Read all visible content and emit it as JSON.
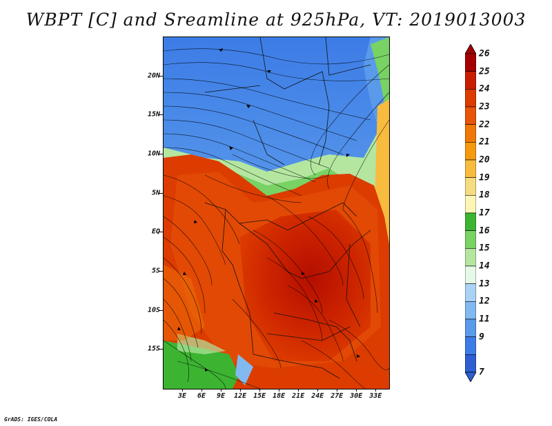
{
  "title": "WBPT [C] and Sreamline at 925hPa, VT: 2019013003",
  "credit": "GrADS: IGES/COLA",
  "map": {
    "variable": "Wet-bulb potential temperature",
    "units": "C",
    "level": "925hPa",
    "valid_time": "2019013003",
    "lon_range": [
      0,
      35
    ],
    "lat_range": [
      -20,
      25
    ],
    "y_labels": [
      {
        "text": "20N",
        "lat": 20
      },
      {
        "text": "15N",
        "lat": 15
      },
      {
        "text": "10N",
        "lat": 10
      },
      {
        "text": "5N",
        "lat": 5
      },
      {
        "text": "EQ",
        "lat": 0
      },
      {
        "text": "5S",
        "lat": -5
      },
      {
        "text": "10S",
        "lat": -10
      },
      {
        "text": "15S",
        "lat": -15
      }
    ],
    "x_labels": [
      {
        "text": "3E",
        "lon": 3
      },
      {
        "text": "6E",
        "lon": 6
      },
      {
        "text": "9E",
        "lon": 9
      },
      {
        "text": "12E",
        "lon": 12
      },
      {
        "text": "15E",
        "lon": 15
      },
      {
        "text": "18E",
        "lon": 18
      },
      {
        "text": "21E",
        "lon": 21
      },
      {
        "text": "24E",
        "lon": 24
      },
      {
        "text": "27E",
        "lon": 27
      },
      {
        "text": "30E",
        "lon": 30
      },
      {
        "text": "33E",
        "lon": 33
      }
    ]
  },
  "colorbar": {
    "labels": [
      "26",
      "25",
      "24",
      "23",
      "22",
      "21",
      "20",
      "19",
      "18",
      "17",
      "16",
      "15",
      "14",
      "13",
      "12",
      "11",
      "9",
      "7"
    ],
    "colors": [
      "#a50000",
      "#c81e00",
      "#dc3c00",
      "#e8540a",
      "#f07808",
      "#f59a0e",
      "#f7bb3e",
      "#f5dc82",
      "#fbf6b4",
      "#3cb432",
      "#78d264",
      "#b4e6a0",
      "#e6f8e6",
      "#aad2f5",
      "#82b9f0",
      "#5a9aeb",
      "#3c7ce6",
      "#2d5fd2"
    ]
  }
}
